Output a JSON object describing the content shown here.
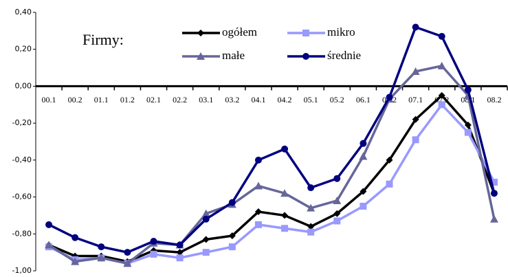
{
  "chart_data": {
    "type": "line",
    "legend_title": "Firmy:",
    "categories": [
      "00.1",
      "00.2",
      "01.1",
      "01.2",
      "02.1",
      "02.2",
      "03.1",
      "03.2",
      "04.1",
      "04.2",
      "05.1",
      "05.2",
      "06.1",
      "06.2",
      "07.1",
      "07.2",
      "08.1",
      "08.2"
    ],
    "series": [
      {
        "name": "ogółem",
        "color": "#000000",
        "marker": "diamond",
        "values": [
          -0.86,
          -0.92,
          -0.92,
          -0.95,
          -0.89,
          -0.9,
          -0.83,
          -0.81,
          -0.68,
          -0.7,
          -0.76,
          -0.69,
          -0.57,
          -0.4,
          -0.18,
          -0.05,
          -0.21,
          -0.58
        ]
      },
      {
        "name": "mikro",
        "color": "#9999ff",
        "marker": "square",
        "values": [
          -0.87,
          -0.94,
          -0.93,
          -0.96,
          -0.91,
          -0.93,
          -0.9,
          -0.87,
          -0.75,
          -0.77,
          -0.79,
          -0.73,
          -0.65,
          -0.53,
          -0.29,
          -0.1,
          -0.25,
          -0.52
        ]
      },
      {
        "name": "małe",
        "color": "#666699",
        "marker": "triangle",
        "values": [
          -0.86,
          -0.95,
          -0.93,
          -0.96,
          -0.85,
          -0.86,
          -0.69,
          -0.64,
          -0.54,
          -0.58,
          -0.66,
          -0.62,
          -0.38,
          -0.07,
          0.08,
          0.11,
          -0.05,
          -0.72
        ]
      },
      {
        "name": "średnie",
        "color": "#000080",
        "marker": "circle",
        "values": [
          -0.75,
          -0.82,
          -0.87,
          -0.9,
          -0.84,
          -0.86,
          -0.72,
          -0.63,
          -0.4,
          -0.34,
          -0.55,
          -0.5,
          -0.31,
          -0.06,
          0.32,
          0.27,
          -0.02,
          -0.58
        ]
      }
    ],
    "ylim": [
      -1.0,
      0.4
    ],
    "yticks": [
      {
        "value": -1.0,
        "label": "-1,00"
      },
      {
        "value": -0.8,
        "label": "-0,80"
      },
      {
        "value": -0.6,
        "label": "-0,60"
      },
      {
        "value": -0.4,
        "label": "-0,40"
      },
      {
        "value": -0.2,
        "label": "-0,20"
      },
      {
        "value": 0,
        "label": "0,00"
      },
      {
        "value": 0.2,
        "label": "0,20"
      },
      {
        "value": 0.4,
        "label": "0,40"
      }
    ],
    "grid": false
  }
}
